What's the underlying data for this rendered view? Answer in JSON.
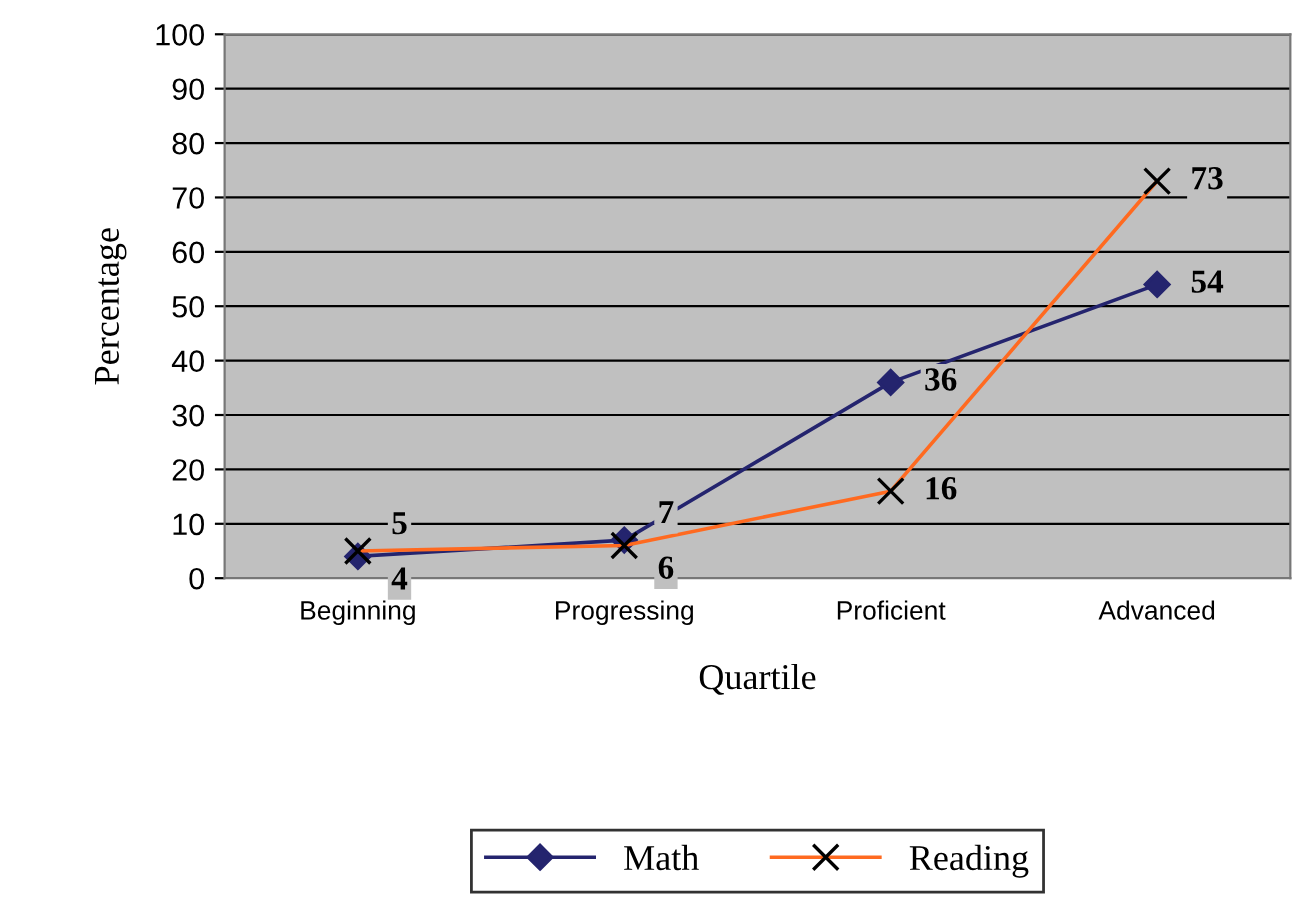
{
  "chart_data": {
    "type": "line",
    "xlabel": "Quartile",
    "ylabel": "Percentage",
    "categories": [
      "Beginning",
      "Progressing",
      "Proficient",
      "Advanced"
    ],
    "series": [
      {
        "name": "Math",
        "color": "#24246e",
        "marker": "diamond",
        "values": [
          4,
          7,
          36,
          54
        ]
      },
      {
        "name": "Reading",
        "color": "#ff6a20",
        "marker": "cross",
        "values": [
          5,
          6,
          16,
          73
        ]
      }
    ],
    "ylim": [
      0,
      100
    ],
    "yticks": [
      0,
      10,
      20,
      30,
      40,
      50,
      60,
      70,
      80,
      90,
      100
    ],
    "grid": "y",
    "legend": "bottom",
    "data_labels": true
  }
}
